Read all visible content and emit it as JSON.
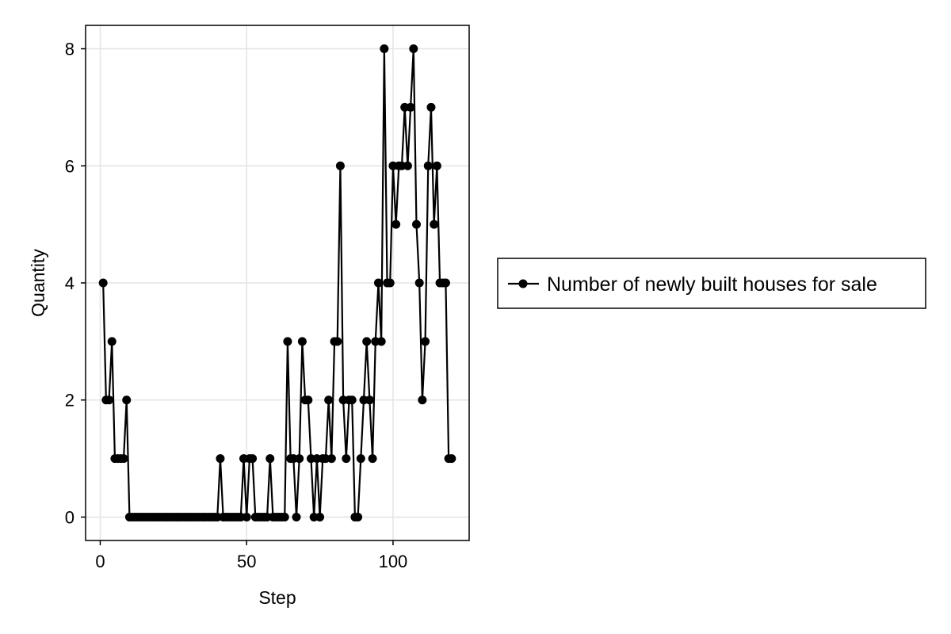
{
  "chart_data": {
    "type": "line",
    "xlabel": "Step",
    "ylabel": "Quantity",
    "xlim": [
      -5,
      126
    ],
    "ylim": [
      -0.4,
      8.4
    ],
    "x_ticks": [
      0,
      50,
      100
    ],
    "y_ticks": [
      0,
      2,
      4,
      6,
      8
    ],
    "grid": true,
    "legend_position": "right",
    "series": [
      {
        "name": "Number of newly built houses for sale",
        "color": "#000000",
        "marker": "circle",
        "x": [
          1,
          2,
          3,
          4,
          5,
          6,
          7,
          8,
          9,
          10,
          11,
          12,
          13,
          14,
          15,
          16,
          17,
          18,
          19,
          20,
          21,
          22,
          23,
          24,
          25,
          26,
          27,
          28,
          29,
          30,
          31,
          32,
          33,
          34,
          35,
          36,
          37,
          38,
          39,
          40,
          41,
          42,
          43,
          44,
          45,
          46,
          47,
          48,
          49,
          50,
          51,
          52,
          53,
          54,
          55,
          56,
          57,
          58,
          59,
          60,
          61,
          62,
          63,
          64,
          65,
          66,
          67,
          68,
          69,
          70,
          71,
          72,
          73,
          74,
          75,
          76,
          77,
          78,
          79,
          80,
          81,
          82,
          83,
          84,
          85,
          86,
          87,
          88,
          89,
          90,
          91,
          92,
          93,
          94,
          95,
          96,
          97,
          98,
          99,
          100,
          101,
          102,
          103,
          104,
          105,
          106,
          107,
          108,
          109,
          110,
          111,
          112,
          113,
          114,
          115,
          116,
          117,
          118,
          119,
          120
        ],
        "y": [
          4,
          2,
          2,
          3,
          1,
          1,
          1,
          1,
          2,
          0,
          0,
          0,
          0,
          0,
          0,
          0,
          0,
          0,
          0,
          0,
          0,
          0,
          0,
          0,
          0,
          0,
          0,
          0,
          0,
          0,
          0,
          0,
          0,
          0,
          0,
          0,
          0,
          0,
          0,
          0,
          1,
          0,
          0,
          0,
          0,
          0,
          0,
          0,
          1,
          0,
          1,
          1,
          0,
          0,
          0,
          0,
          0,
          1,
          0,
          0,
          0,
          0,
          0,
          3,
          1,
          1,
          0,
          1,
          3,
          2,
          2,
          1,
          0,
          1,
          0,
          1,
          1,
          2,
          1,
          3,
          3,
          6,
          2,
          1,
          2,
          2,
          0,
          0,
          1,
          2,
          3,
          2,
          1,
          3,
          4,
          3,
          8,
          4,
          4,
          6,
          5,
          6,
          6,
          7,
          6,
          7,
          8,
          5,
          4,
          2,
          3,
          6,
          7,
          5,
          6,
          4,
          4,
          4,
          1,
          1
        ]
      }
    ]
  }
}
